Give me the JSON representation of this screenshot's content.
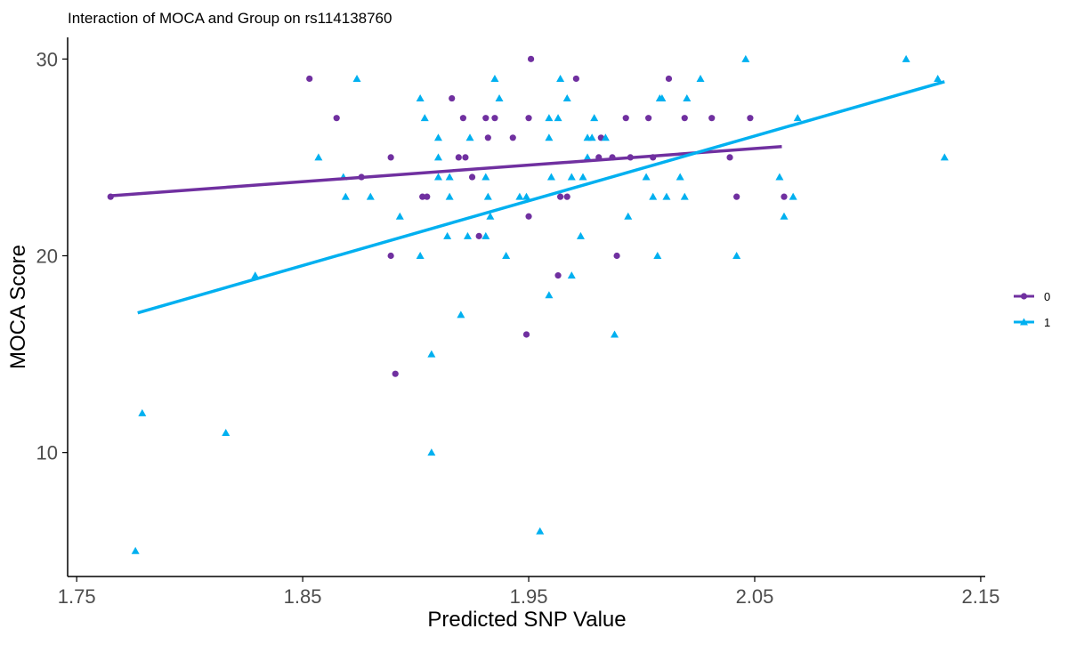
{
  "chart_data": {
    "type": "scatter",
    "title": "Interaction of MOCA and Group on rs114138760",
    "xlabel": "Predicted SNP Value",
    "ylabel": "MOCA Score",
    "xlim": [
      1.746,
      2.152
    ],
    "ylim": [
      3.7,
      31.1
    ],
    "xticks": [
      1.75,
      1.85,
      1.95,
      2.05,
      2.15
    ],
    "xtick_labels": [
      "1.75",
      "1.85",
      "1.95",
      "2.05",
      "2.15"
    ],
    "yticks": [
      10,
      20,
      30
    ],
    "ytick_labels": [
      "10",
      "20",
      "30"
    ],
    "grid": false,
    "legend_position": "right",
    "series": [
      {
        "name": "0",
        "marker": "circle",
        "color": "#7030A0",
        "points": [
          [
            1.765,
            23
          ],
          [
            1.853,
            29
          ],
          [
            1.951,
            30
          ],
          [
            1.916,
            28
          ],
          [
            1.865,
            27
          ],
          [
            1.921,
            27
          ],
          [
            1.931,
            27
          ],
          [
            1.935,
            27
          ],
          [
            1.95,
            27
          ],
          [
            1.932,
            26
          ],
          [
            1.943,
            26
          ],
          [
            1.889,
            25
          ],
          [
            1.919,
            25
          ],
          [
            1.922,
            25
          ],
          [
            1.876,
            24
          ],
          [
            1.925,
            24
          ],
          [
            1.903,
            23
          ],
          [
            1.905,
            23
          ],
          [
            1.964,
            23
          ],
          [
            1.95,
            22
          ],
          [
            1.928,
            21
          ],
          [
            1.889,
            20
          ],
          [
            1.971,
            29
          ],
          [
            2.012,
            29
          ],
          [
            1.993,
            27
          ],
          [
            2.003,
            27
          ],
          [
            2.019,
            27
          ],
          [
            2.031,
            27
          ],
          [
            2.048,
            27
          ],
          [
            1.982,
            26
          ],
          [
            1.981,
            25
          ],
          [
            1.987,
            25
          ],
          [
            1.995,
            25
          ],
          [
            2.005,
            25
          ],
          [
            2.039,
            25
          ],
          [
            1.967,
            23
          ],
          [
            2.042,
            23
          ],
          [
            2.063,
            23
          ],
          [
            1.989,
            20
          ],
          [
            1.963,
            19
          ],
          [
            1.949,
            16
          ],
          [
            1.891,
            14
          ]
        ],
        "fit_line": [
          [
            1.765,
            23.05
          ],
          [
            2.062,
            25.55
          ]
        ]
      },
      {
        "name": "1",
        "marker": "triangle",
        "color": "#00B0F0",
        "points": [
          [
            1.874,
            29
          ],
          [
            1.935,
            29
          ],
          [
            1.964,
            29
          ],
          [
            1.902,
            28
          ],
          [
            1.937,
            28
          ],
          [
            1.904,
            27
          ],
          [
            1.959,
            27
          ],
          [
            1.963,
            27
          ],
          [
            1.91,
            26
          ],
          [
            1.924,
            26
          ],
          [
            1.959,
            26
          ],
          [
            1.857,
            25
          ],
          [
            1.91,
            25
          ],
          [
            1.868,
            24
          ],
          [
            1.91,
            24
          ],
          [
            1.915,
            24
          ],
          [
            1.931,
            24
          ],
          [
            1.96,
            24
          ],
          [
            1.869,
            23
          ],
          [
            1.88,
            23
          ],
          [
            1.915,
            23
          ],
          [
            1.932,
            23
          ],
          [
            1.946,
            23
          ],
          [
            1.949,
            23
          ],
          [
            1.893,
            22
          ],
          [
            1.933,
            22
          ],
          [
            1.914,
            21
          ],
          [
            1.923,
            21
          ],
          [
            1.931,
            21
          ],
          [
            1.902,
            20
          ],
          [
            1.94,
            20
          ],
          [
            2.046,
            30
          ],
          [
            2.026,
            29
          ],
          [
            1.967,
            28
          ],
          [
            2.008,
            28
          ],
          [
            2.009,
            28
          ],
          [
            2.02,
            28
          ],
          [
            1.979,
            27
          ],
          [
            2.069,
            27
          ],
          [
            1.976,
            26
          ],
          [
            1.978,
            26
          ],
          [
            1.984,
            26
          ],
          [
            1.976,
            25
          ],
          [
            1.969,
            24
          ],
          [
            1.974,
            24
          ],
          [
            2.002,
            24
          ],
          [
            2.017,
            24
          ],
          [
            2.061,
            24
          ],
          [
            2.005,
            23
          ],
          [
            2.011,
            23
          ],
          [
            2.019,
            23
          ],
          [
            2.067,
            23
          ],
          [
            1.994,
            22
          ],
          [
            2.063,
            22
          ],
          [
            1.973,
            21
          ],
          [
            2.007,
            20
          ],
          [
            2.042,
            20
          ],
          [
            2.117,
            30
          ],
          [
            2.131,
            29
          ],
          [
            2.134,
            25
          ],
          [
            1.829,
            19
          ],
          [
            1.776,
            5
          ],
          [
            1.779,
            12
          ],
          [
            1.816,
            11
          ],
          [
            1.907,
            10
          ],
          [
            1.907,
            15
          ],
          [
            1.92,
            17
          ],
          [
            1.959,
            18
          ],
          [
            1.955,
            6
          ],
          [
            1.969,
            19
          ],
          [
            1.988,
            16
          ]
        ],
        "fit_line": [
          [
            1.777,
            17.1
          ],
          [
            2.134,
            28.85
          ]
        ]
      }
    ]
  }
}
